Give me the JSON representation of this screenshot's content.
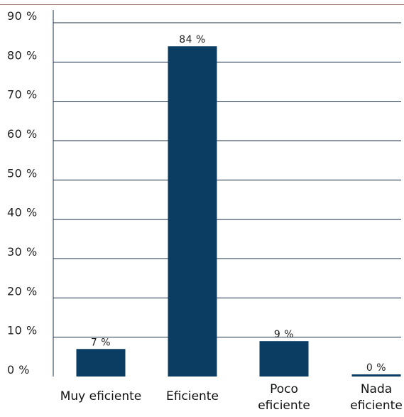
{
  "chart_data": {
    "type": "bar",
    "title": "",
    "xlabel": "",
    "ylabel": "",
    "categories": [
      [
        "Muy eficiente"
      ],
      [
        "Eficiente"
      ],
      [
        "Poco",
        "eficiente"
      ],
      [
        "Nada",
        "eficiente"
      ]
    ],
    "values": [
      7,
      84,
      9,
      0
    ],
    "data_labels": [
      "7 %",
      "84 %",
      "9 %",
      "0 %"
    ],
    "yticks": [
      0,
      10,
      20,
      30,
      40,
      50,
      60,
      70,
      80,
      90
    ],
    "ytick_labels": [
      "0 %",
      "10 %",
      "20 %",
      "30 %",
      "40 %",
      "50 %",
      "60 %",
      "70 %",
      "80 %",
      "90 %"
    ],
    "ylim": [
      0,
      90
    ],
    "grid": true,
    "legend": "none",
    "colors": {
      "bar": "#0b3d63",
      "grid": "#1a2f45",
      "top_rule": "#9c7b6e"
    }
  }
}
